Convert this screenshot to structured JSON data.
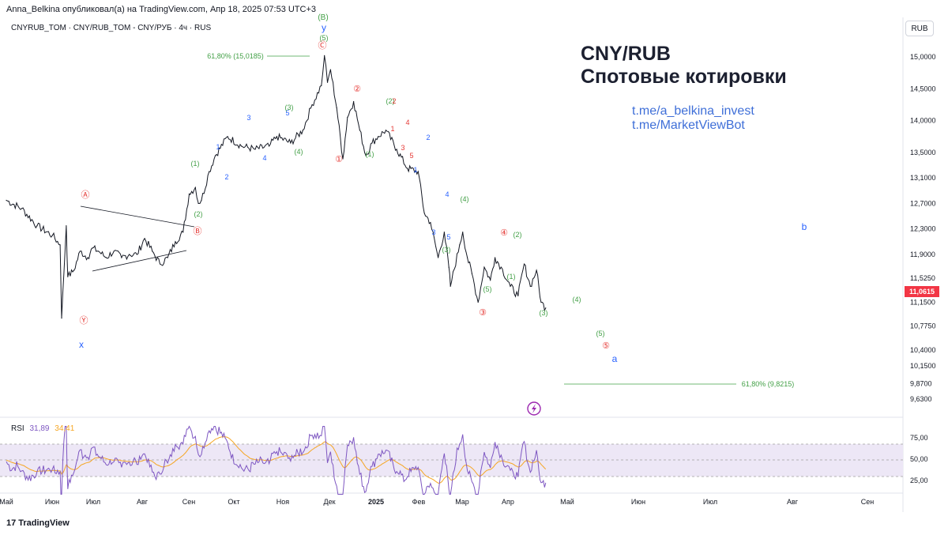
{
  "header": {
    "publisher": "Anna_Belkina опубликовал(а) на TradingView.com, Апр 18, 2025 07:53 UTC+3",
    "symbol_line": "CNYRUB_TOM · CNY/RUB_TOM - CNY/РУБ · 4ч · RUS",
    "currency_button": "RUB",
    "brand": "TradingView"
  },
  "annotations": {
    "title": "CNY/RUB",
    "subtitle": "Спотовые котировки",
    "link1": "t.me/a_belkina_invest",
    "link2": "t.me/MarketViewBot"
  },
  "fib_labels": {
    "top": "61,80% (15,0185)",
    "bottom": "61,80% (9,8215)"
  },
  "current_price": "11,0615",
  "colors": {
    "price_line": "#131722",
    "rsi_line": "#7e57c2",
    "rsi_ma": "#f5a623",
    "red": "#e53935",
    "green": "#43a047",
    "blue": "#2962ff",
    "rsi_band": "#ede7f6"
  },
  "rsi": {
    "label": "RSI",
    "value1": "31,89",
    "value2": "34,41",
    "ticks": [
      "75,00",
      "50,00",
      "25,00"
    ]
  },
  "chart_data": {
    "type": "line",
    "ylim": [
      9.45,
      15.3
    ],
    "y_ticks": [
      "15,0000",
      "14,5000",
      "14,0000",
      "13,5000",
      "13,1000",
      "12,7000",
      "12,3000",
      "11,9000",
      "11,5250",
      "11,1500",
      "10,7750",
      "10,4000",
      "10,1500",
      "9,8700",
      "9,6300"
    ],
    "x_ticks": [
      "Май",
      "Июн",
      "Июл",
      "Авг",
      "Сен",
      "Окт",
      "Ноя",
      "Дек",
      "2025",
      "Фев",
      "Мар",
      "Апр",
      "Май",
      "Июн",
      "Июл",
      "Авг",
      "Сен"
    ],
    "series": [
      {
        "x": [
          "2024-05-01",
          "2024-05-11",
          "2024-05-21",
          "2024-05-31",
          "2024-06-05",
          "2024-06-06",
          "2024-06-09",
          "2024-06-10",
          "2024-06-14",
          "2024-06-18",
          "2024-06-23",
          "2024-06-26",
          "2024-06-30",
          "2024-07-05",
          "2024-07-10",
          "2024-07-15",
          "2024-07-20",
          "2024-07-25",
          "2024-07-30",
          "2024-08-04",
          "2024-08-09",
          "2024-08-14",
          "2024-08-19",
          "2024-08-24",
          "2024-08-28",
          "2024-09-01",
          "2024-09-03",
          "2024-09-05",
          "2024-09-10",
          "2024-09-14",
          "2024-09-22",
          "2024-10-01",
          "2024-10-10",
          "2024-10-19",
          "2024-10-24",
          "2024-11-02",
          "2024-11-10",
          "2024-11-16",
          "2024-11-22",
          "2024-11-24",
          "2024-11-26",
          "2024-11-28",
          "2024-12-02",
          "2024-12-06",
          "2024-12-09",
          "2024-12-13",
          "2024-12-17",
          "2024-12-21",
          "2024-12-25",
          "2024-12-29",
          "2025-01-03",
          "2025-01-10",
          "2025-01-17",
          "2025-01-24",
          "2025-01-28",
          "2025-02-01",
          "2025-02-06",
          "2025-02-10",
          "2025-02-13",
          "2025-02-14",
          "2025-02-20",
          "2025-02-22",
          "2025-02-25",
          "2025-02-28",
          "2025-03-04",
          "2025-03-08",
          "2025-03-12",
          "2025-03-15",
          "2025-03-19",
          "2025-03-25",
          "2025-03-30",
          "2025-04-03",
          "2025-04-07",
          "2025-04-11",
          "2025-04-14",
          "2025-04-17"
        ],
        "values": [
          12.75,
          12.62,
          12.35,
          12.2,
          12.05,
          10.9,
          12.35,
          11.55,
          11.65,
          11.95,
          11.85,
          12.0,
          11.95,
          11.85,
          11.95,
          11.85,
          11.9,
          11.9,
          12.15,
          11.95,
          11.75,
          11.85,
          12.1,
          12.25,
          12.85,
          12.95,
          12.7,
          12.75,
          13.2,
          13.45,
          13.75,
          13.6,
          13.55,
          13.6,
          13.75,
          13.65,
          13.85,
          14.25,
          14.55,
          15.02,
          14.6,
          14.8,
          14.2,
          13.4,
          14.05,
          14.3,
          13.85,
          13.45,
          13.65,
          13.75,
          13.85,
          13.55,
          13.25,
          13.2,
          12.55,
          12.4,
          11.85,
          12.25,
          11.7,
          11.4,
          12.05,
          12.25,
          11.85,
          11.6,
          11.15,
          11.7,
          11.5,
          11.85,
          11.7,
          11.4,
          11.25,
          11.75,
          11.4,
          11.65,
          11.15,
          11.06
        ]
      }
    ]
  },
  "wave_labels": {
    "A": "Ⓐ",
    "B": "Ⓑ",
    "C": "Ⓒ",
    "Y": "Ⓨ",
    "c1": "①",
    "c2": "②",
    "c3": "③",
    "c4": "④",
    "c5": "⑤",
    "p1": "(1)",
    "p2": "(2)",
    "p3": "(3)",
    "p4": "(4)",
    "p5": "(5)",
    "pB": "(B)",
    "d1": "1",
    "d2": "2",
    "d3": "3",
    "d4": "4",
    "d5": "5",
    "x": "x",
    "y": "y",
    "a": "a",
    "b": "b"
  }
}
